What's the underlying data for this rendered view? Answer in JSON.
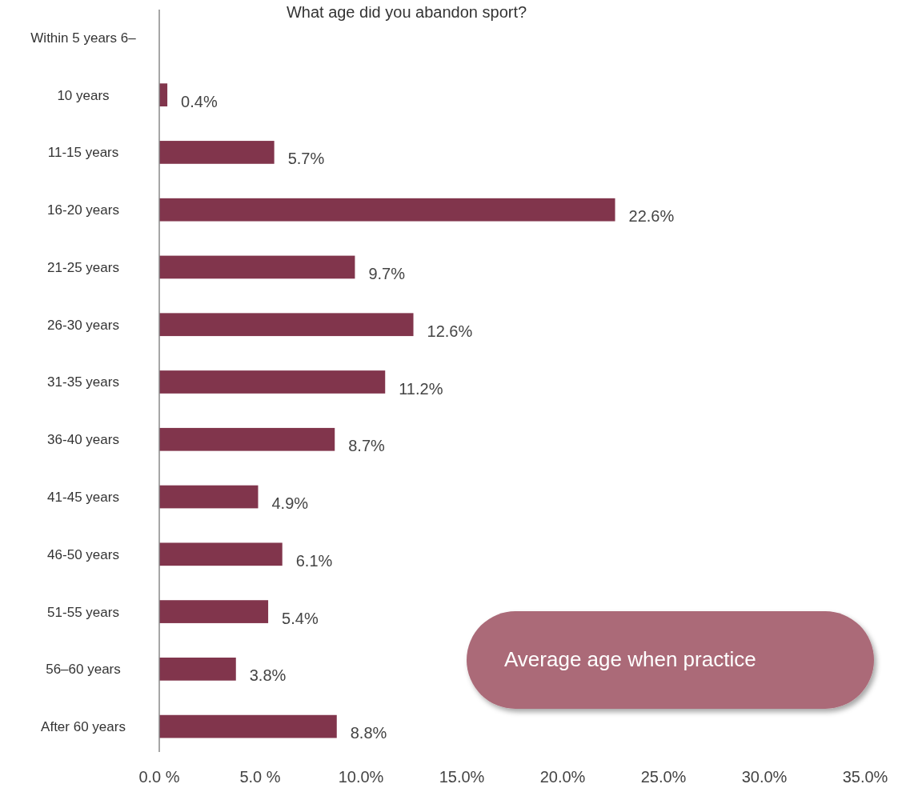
{
  "chart_data": {
    "type": "bar",
    "orientation": "horizontal",
    "title": "What age did you abandon sport?",
    "categories": [
      "Within 5 years 6–",
      "10 years",
      "11-15 years",
      "16-20 years",
      "21-25 years",
      "26-30 years",
      "31-35 years",
      "36-40 years",
      "41-45 years",
      "46-50 years",
      "51-55 years",
      "56–60 years",
      "After 60 years"
    ],
    "values": [
      null,
      0.4,
      5.7,
      22.6,
      9.7,
      12.6,
      11.2,
      8.7,
      4.9,
      6.1,
      5.4,
      3.8,
      8.8
    ],
    "value_labels": [
      null,
      "0.4%",
      "5.7%",
      "22.6%",
      "9.7%",
      "12.6%",
      "11.2%",
      "8.7%",
      "4.9%",
      "6.1%",
      "5.4%",
      "3.8%",
      "8.8%"
    ],
    "color": "#81354c",
    "xlim": [
      0,
      35
    ],
    "xticks": [
      {
        "value": 0,
        "label": "0.0 %"
      },
      {
        "value": 5,
        "label": "5.0 %"
      },
      {
        "value": 10,
        "label": "10.0%"
      },
      {
        "value": 15,
        "label": "15.0%"
      },
      {
        "value": 20,
        "label": "20.0%"
      },
      {
        "value": 25,
        "label": "25.0%"
      },
      {
        "value": 30,
        "label": "30.0%"
      },
      {
        "value": 35,
        "label": "35.0%"
      }
    ],
    "annotations": [
      "Average age when practice"
    ]
  }
}
